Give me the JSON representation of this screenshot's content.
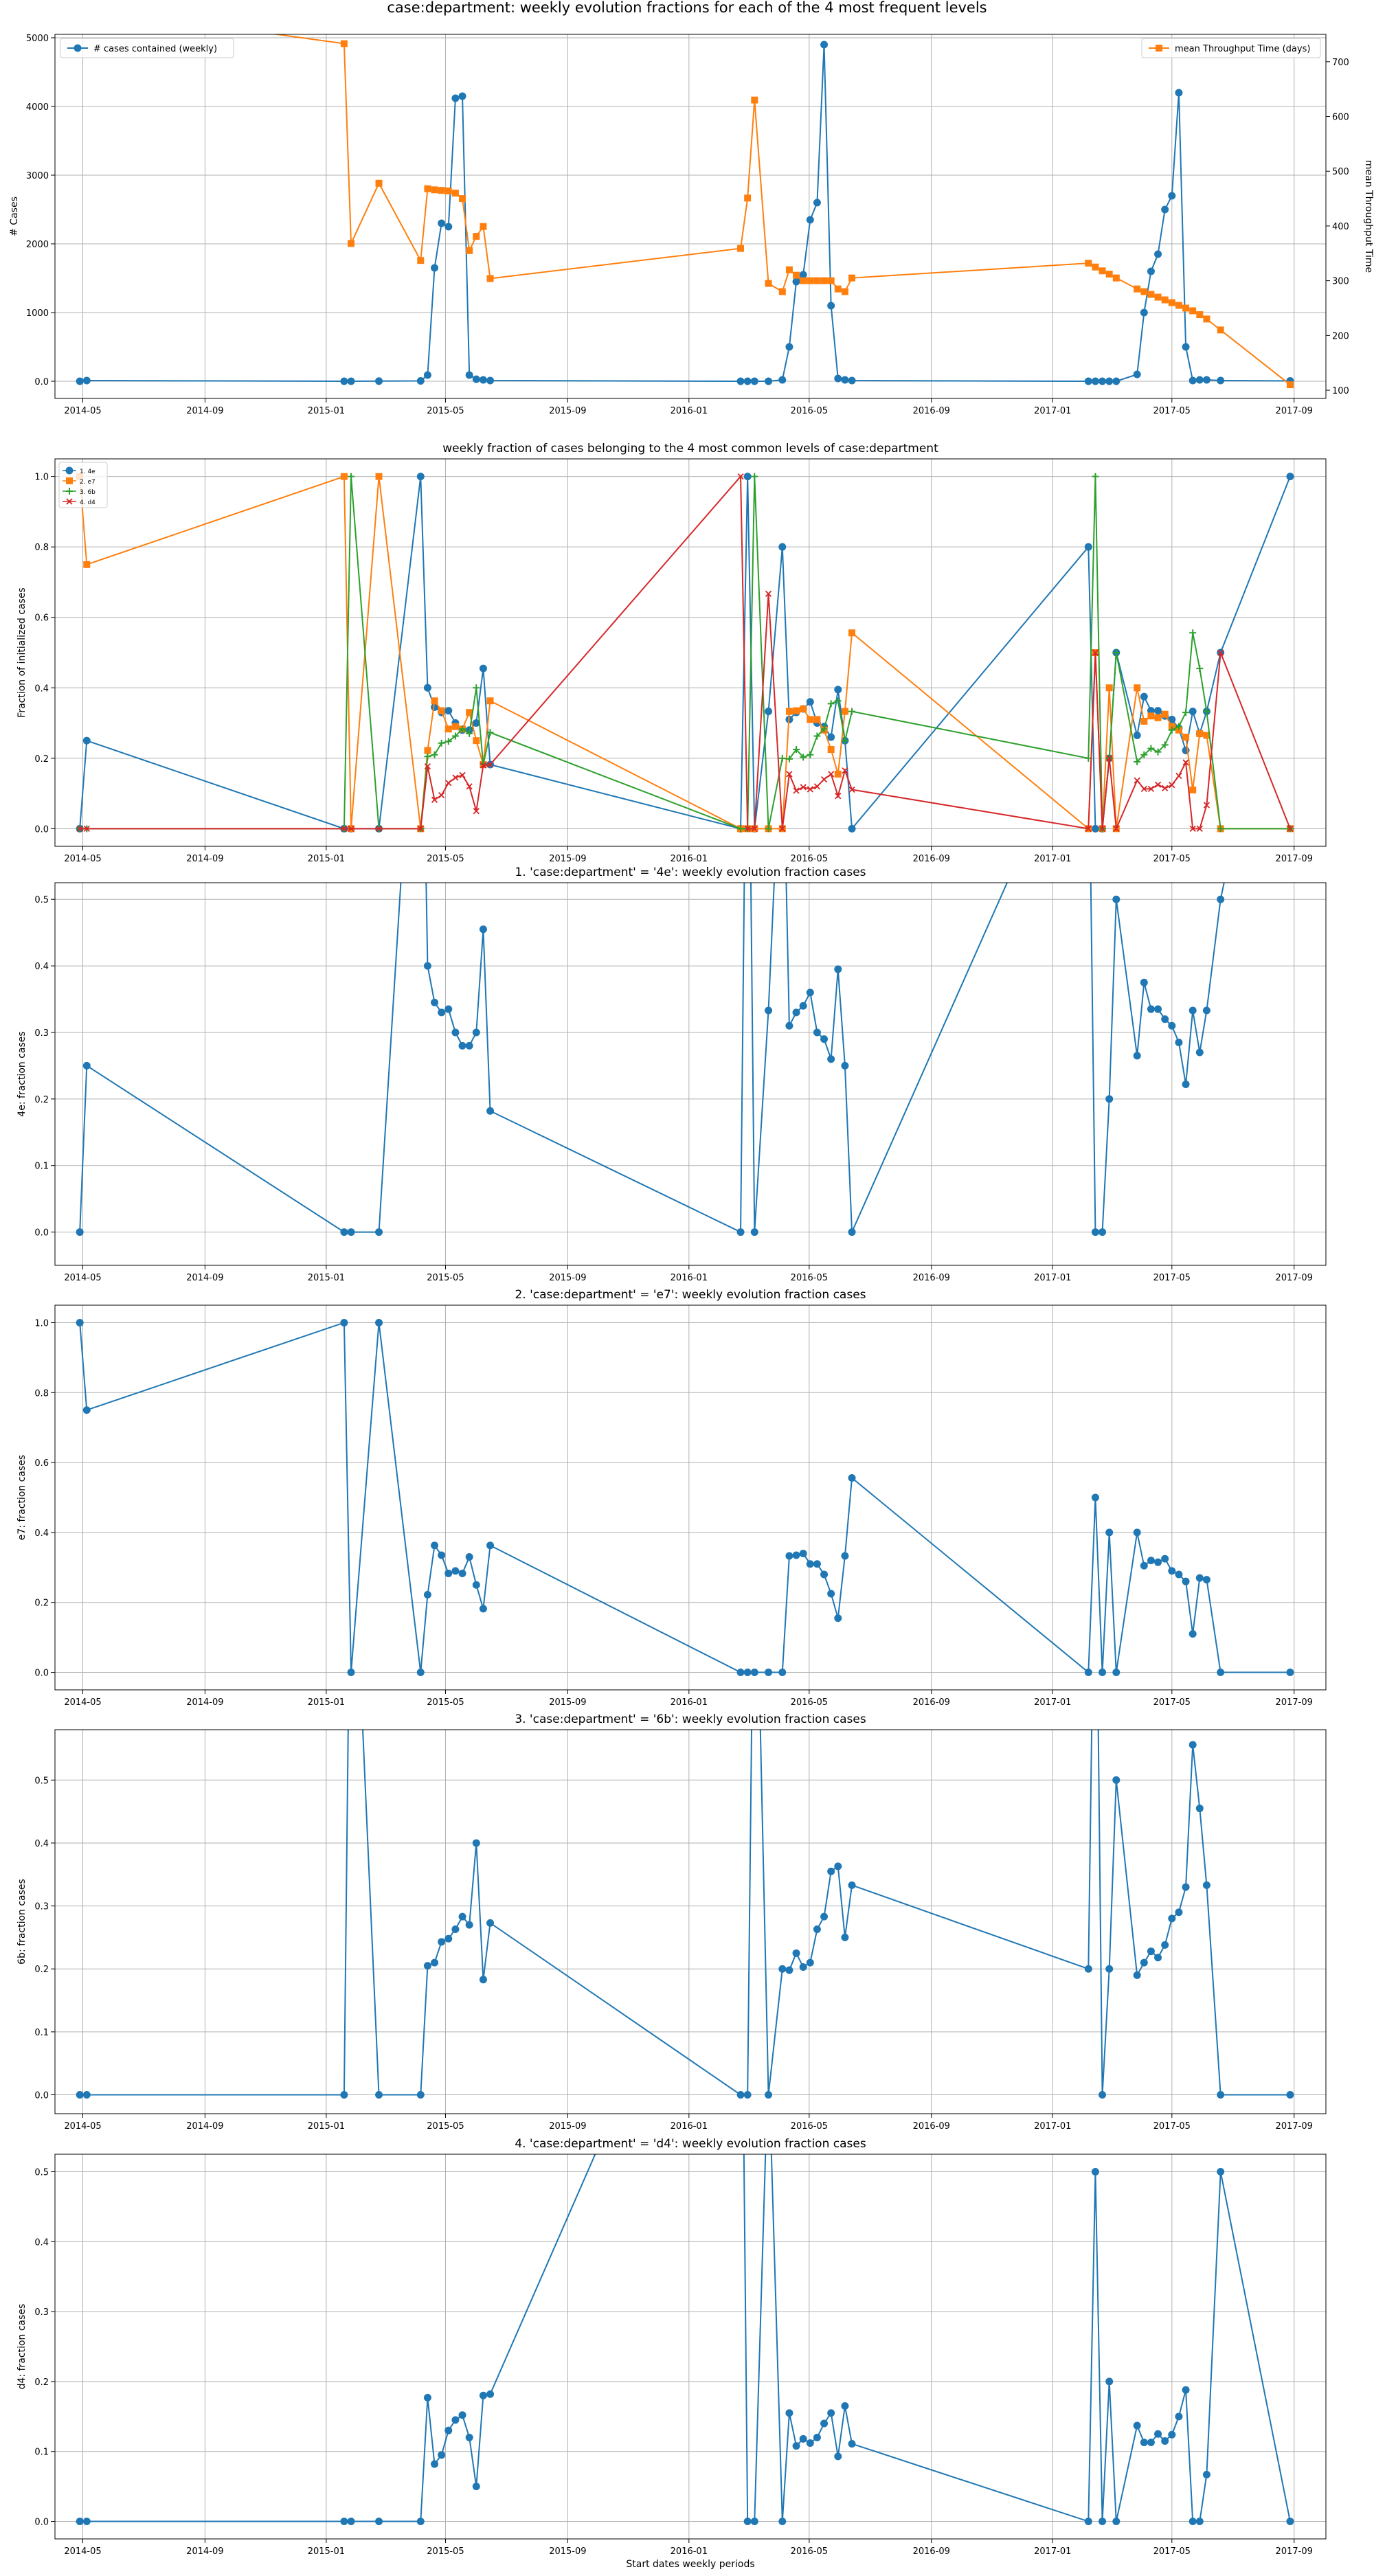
{
  "figure": {
    "suptitle": "case:department: weekly evolution fractions for each of the 4 most frequent levels",
    "xlabel": "Start dates weekly periods"
  },
  "x_ticks": [
    "2014-05",
    "2014-09",
    "2015-01",
    "2015-05",
    "2015-09",
    "2016-01",
    "2016-05",
    "2016-09",
    "2017-01",
    "2017-05",
    "2017-09"
  ],
  "colors": {
    "blue": "#1f77b4",
    "orange": "#ff7f0e",
    "green": "#2ca02c",
    "red": "#d62728",
    "grid": "#b0b0b0"
  },
  "chart_data": [
    {
      "type": "line",
      "title": "",
      "xlabel": "",
      "ylabel": "# Cases",
      "ylabel_right": "mean Throughput Time",
      "xlim": [
        "2014-04-03",
        "2017-10-03"
      ],
      "ylim": [
        -250,
        5050
      ],
      "ylim_right": [
        85,
        750
      ],
      "y_ticks": [
        0,
        1000,
        2000,
        3000,
        4000,
        5000
      ],
      "y_ticks_right": [
        100,
        200,
        300,
        400,
        500,
        600,
        700
      ],
      "grid": true,
      "legend": {
        "left": "# cases contained (weekly)",
        "right": "mean Throughput Time (days)"
      },
      "series": [
        {
          "name": "# cases contained (weekly)",
          "color": "#1f77b4",
          "marker": "circle",
          "axis": "left",
          "x": [
            "2014-04-28",
            "2014-05-05",
            "2015-01-19",
            "2015-01-26",
            "2015-02-23",
            "2015-04-06",
            "2015-04-13",
            "2015-04-20",
            "2015-04-27",
            "2015-05-04",
            "2015-05-11",
            "2015-05-18",
            "2015-05-25",
            "2015-06-01",
            "2015-06-08",
            "2015-06-15",
            "2016-02-22",
            "2016-02-29",
            "2016-03-07",
            "2016-03-21",
            "2016-04-04",
            "2016-04-11",
            "2016-04-18",
            "2016-04-25",
            "2016-05-02",
            "2016-05-09",
            "2016-05-16",
            "2016-05-23",
            "2016-05-30",
            "2016-06-06",
            "2016-06-13",
            "2017-02-06",
            "2017-02-13",
            "2017-02-20",
            "2017-02-27",
            "2017-03-06",
            "2017-03-27",
            "2017-04-03",
            "2017-04-10",
            "2017-04-17",
            "2017-04-24",
            "2017-05-01",
            "2017-05-08",
            "2017-05-15",
            "2017-05-22",
            "2017-05-29",
            "2017-06-05",
            "2017-06-19",
            "2017-08-28"
          ],
          "values": [
            0,
            10,
            0,
            0,
            2,
            5,
            90,
            1650,
            2300,
            2250,
            4120,
            4150,
            90,
            30,
            20,
            10,
            0,
            0,
            0,
            0,
            20,
            500,
            1450,
            1550,
            2350,
            2600,
            4900,
            1100,
            40,
            20,
            10,
            0,
            0,
            0,
            0,
            0,
            100,
            1000,
            1600,
            1850,
            2500,
            2700,
            4200,
            500,
            10,
            20,
            20,
            10,
            5
          ]
        },
        {
          "name": "mean Throughput Time (days)",
          "color": "#ff7f0e",
          "marker": "square",
          "axis": "right",
          "x": [
            "2014-04-28",
            "2015-01-19",
            "2015-01-26",
            "2015-02-23",
            "2015-04-06",
            "2015-04-13",
            "2015-04-20",
            "2015-04-27",
            "2015-05-04",
            "2015-05-11",
            "2015-05-18",
            "2015-05-25",
            "2015-06-01",
            "2015-06-08",
            "2015-06-15",
            "2016-02-22",
            "2016-02-29",
            "2016-03-07",
            "2016-03-21",
            "2016-04-04",
            "2016-04-11",
            "2016-04-18",
            "2016-04-25",
            "2016-05-02",
            "2016-05-09",
            "2016-05-16",
            "2016-05-23",
            "2016-05-30",
            "2016-06-06",
            "2016-06-13",
            "2017-02-06",
            "2017-02-13",
            "2017-02-20",
            "2017-02-27",
            "2017-03-06",
            "2017-03-27",
            "2017-04-03",
            "2017-04-10",
            "2017-04-17",
            "2017-04-24",
            "2017-05-01",
            "2017-05-08",
            "2017-05-15",
            "2017-05-22",
            "2017-05-29",
            "2017-06-05",
            "2017-06-19",
            "2017-08-28"
          ],
          "values": [
            800,
            733,
            368,
            478,
            337,
            468,
            466,
            465,
            464,
            460,
            450,
            355,
            381,
            399,
            304,
            359,
            451,
            630,
            295,
            280,
            320,
            310,
            300,
            300,
            300,
            300,
            300,
            285,
            280,
            305,
            332,
            325,
            318,
            312,
            305,
            285,
            280,
            275,
            270,
            265,
            260,
            255,
            250,
            245,
            238,
            230,
            210,
            110
          ]
        }
      ]
    },
    {
      "type": "line",
      "title": "weekly fraction of cases belonging to the 4 most common levels of case:department",
      "xlabel": "",
      "ylabel": "Fraction of initialized cases",
      "xlim": [
        "2014-04-03",
        "2017-10-03"
      ],
      "ylim": [
        -0.05,
        1.05
      ],
      "y_ticks": [
        0.0,
        0.2,
        0.4,
        0.6,
        0.8,
        1.0
      ],
      "grid": true,
      "legend_position": "top-left",
      "series": [
        {
          "name": "1. 4e",
          "color": "#1f77b4",
          "marker": "circle",
          "ref": "4e"
        },
        {
          "name": "2. e7",
          "color": "#ff7f0e",
          "marker": "square",
          "ref": "e7"
        },
        {
          "name": "3. 6b",
          "color": "#2ca02c",
          "marker": "plus",
          "ref": "6b"
        },
        {
          "name": "4. d4",
          "color": "#d62728",
          "marker": "x",
          "ref": "d4"
        }
      ]
    },
    {
      "type": "line",
      "key": "4e",
      "title": "1. 'case:department' = '4e': weekly evolution fraction cases",
      "xlabel": "",
      "ylabel": "4e: fraction cases",
      "xlim": [
        "2014-04-03",
        "2017-10-03"
      ],
      "ylim": [
        -0.05,
        0.525
      ],
      "y_ticks": [
        0.0,
        0.1,
        0.2,
        0.3,
        0.4,
        0.5
      ],
      "grid": true,
      "series": [
        {
          "color": "#1f77b4",
          "marker": "circle",
          "x": [
            "2014-04-28",
            "2014-05-05",
            "2015-01-19",
            "2015-01-26",
            "2015-02-23",
            "2015-04-06",
            "2015-04-13",
            "2015-04-20",
            "2015-04-27",
            "2015-05-04",
            "2015-05-11",
            "2015-05-18",
            "2015-05-25",
            "2015-06-01",
            "2015-06-08",
            "2015-06-15",
            "2016-02-22",
            "2016-02-29",
            "2016-03-07",
            "2016-03-21",
            "2016-04-04",
            "2016-04-11",
            "2016-04-18",
            "2016-04-25",
            "2016-05-02",
            "2016-05-09",
            "2016-05-16",
            "2016-05-23",
            "2016-05-30",
            "2016-06-06",
            "2016-06-13",
            "2017-02-06",
            "2017-02-13",
            "2017-02-20",
            "2017-02-27",
            "2017-03-06",
            "2017-03-27",
            "2017-04-03",
            "2017-04-10",
            "2017-04-17",
            "2017-04-24",
            "2017-05-01",
            "2017-05-08",
            "2017-05-15",
            "2017-05-22",
            "2017-05-29",
            "2017-06-05",
            "2017-06-19",
            "2017-08-28"
          ],
          "values": [
            0,
            0.25,
            0,
            0,
            0,
            1,
            0.4,
            0.345,
            0.33,
            0.335,
            0.3,
            0.28,
            0.28,
            0.3,
            0.455,
            0.182,
            0,
            1,
            0,
            0.333,
            0.8,
            0.31,
            0.33,
            0.34,
            0.36,
            0.3,
            0.29,
            0.26,
            0.395,
            0.25,
            0,
            0.8,
            0,
            0,
            0.2,
            0.5,
            0.265,
            0.375,
            0.335,
            0.335,
            0.32,
            0.31,
            0.285,
            0.222,
            0.333,
            0.27,
            0.333,
            0.5,
            1
          ]
        }
      ]
    },
    {
      "type": "line",
      "key": "e7",
      "title": "2. 'case:department' = 'e7': weekly evolution fraction cases",
      "xlabel": "",
      "ylabel": "e7: fraction cases",
      "xlim": [
        "2014-04-03",
        "2017-10-03"
      ],
      "ylim": [
        -0.05,
        1.05
      ],
      "y_ticks": [
        0.0,
        0.2,
        0.4,
        0.6,
        0.8,
        1.0
      ],
      "grid": true,
      "series": [
        {
          "color": "#1f77b4",
          "marker": "circle",
          "x": [
            "2014-04-28",
            "2014-05-05",
            "2015-01-19",
            "2015-01-26",
            "2015-02-23",
            "2015-04-06",
            "2015-04-13",
            "2015-04-20",
            "2015-04-27",
            "2015-05-04",
            "2015-05-11",
            "2015-05-18",
            "2015-05-25",
            "2015-06-01",
            "2015-06-08",
            "2015-06-15",
            "2016-02-22",
            "2016-02-29",
            "2016-03-07",
            "2016-03-21",
            "2016-04-04",
            "2016-04-11",
            "2016-04-18",
            "2016-04-25",
            "2016-05-02",
            "2016-05-09",
            "2016-05-16",
            "2016-05-23",
            "2016-05-30",
            "2016-06-06",
            "2016-06-13",
            "2017-02-06",
            "2017-02-13",
            "2017-02-20",
            "2017-02-27",
            "2017-03-06",
            "2017-03-27",
            "2017-04-03",
            "2017-04-10",
            "2017-04-17",
            "2017-04-24",
            "2017-05-01",
            "2017-05-08",
            "2017-05-15",
            "2017-05-22",
            "2017-05-29",
            "2017-06-05",
            "2017-06-19",
            "2017-08-28"
          ],
          "values": [
            1,
            0.75,
            1,
            0,
            1,
            0,
            0.222,
            0.363,
            0.335,
            0.283,
            0.29,
            0.283,
            0.33,
            0.25,
            0.182,
            0.363,
            0,
            0,
            0,
            0,
            0,
            0.333,
            0.335,
            0.34,
            0.31,
            0.31,
            0.28,
            0.225,
            0.155,
            0.333,
            0.556,
            0,
            0.5,
            0,
            0.4,
            0,
            0.4,
            0.305,
            0.32,
            0.315,
            0.325,
            0.29,
            0.28,
            0.26,
            0.11,
            0.27,
            0.265,
            0,
            0
          ]
        }
      ]
    },
    {
      "type": "line",
      "key": "6b",
      "title": "3. 'case:department' = '6b': weekly evolution fraction cases",
      "xlabel": "",
      "ylabel": "6b: fraction cases",
      "xlim": [
        "2014-04-03",
        "2017-10-03"
      ],
      "ylim": [
        -0.03,
        0.58
      ],
      "y_ticks": [
        0.0,
        0.1,
        0.2,
        0.3,
        0.4,
        0.5
      ],
      "grid": true,
      "series": [
        {
          "color": "#1f77b4",
          "marker": "circle",
          "x": [
            "2014-04-28",
            "2014-05-05",
            "2015-01-19",
            "2015-01-26",
            "2015-02-23",
            "2015-04-06",
            "2015-04-13",
            "2015-04-20",
            "2015-04-27",
            "2015-05-04",
            "2015-05-11",
            "2015-05-18",
            "2015-05-25",
            "2015-06-01",
            "2015-06-08",
            "2015-06-15",
            "2016-02-22",
            "2016-02-29",
            "2016-03-07",
            "2016-03-21",
            "2016-04-04",
            "2016-04-11",
            "2016-04-18",
            "2016-04-25",
            "2016-05-02",
            "2016-05-09",
            "2016-05-16",
            "2016-05-23",
            "2016-05-30",
            "2016-06-06",
            "2016-06-13",
            "2017-02-06",
            "2017-02-13",
            "2017-02-20",
            "2017-02-27",
            "2017-03-06",
            "2017-03-27",
            "2017-04-03",
            "2017-04-10",
            "2017-04-17",
            "2017-04-24",
            "2017-05-01",
            "2017-05-08",
            "2017-05-15",
            "2017-05-22",
            "2017-05-29",
            "2017-06-05",
            "2017-06-19",
            "2017-08-28"
          ],
          "values": [
            0,
            0,
            0,
            1,
            0,
            0,
            0.205,
            0.21,
            0.243,
            0.248,
            0.263,
            0.283,
            0.27,
            0.4,
            0.183,
            0.273,
            0,
            0,
            1,
            0,
            0.2,
            0.198,
            0.225,
            0.203,
            0.21,
            0.263,
            0.283,
            0.355,
            0.363,
            0.25,
            0.333,
            0.2,
            1,
            0,
            0.2,
            0.5,
            0.19,
            0.21,
            0.228,
            0.218,
            0.238,
            0.28,
            0.29,
            0.33,
            0.556,
            0.455,
            0.333,
            0,
            0
          ]
        }
      ]
    },
    {
      "type": "line",
      "key": "d4",
      "title": "4. 'case:department' = 'd4': weekly evolution fraction cases",
      "xlabel": "Start dates weekly periods",
      "ylabel": "d4: fraction cases",
      "xlim": [
        "2014-04-03",
        "2017-10-03"
      ],
      "ylim": [
        -0.025,
        0.525
      ],
      "y_ticks": [
        0.0,
        0.1,
        0.2,
        0.3,
        0.4,
        0.5
      ],
      "grid": true,
      "series": [
        {
          "color": "#1f77b4",
          "marker": "circle",
          "x": [
            "2014-04-28",
            "2014-05-05",
            "2015-01-19",
            "2015-01-26",
            "2015-02-23",
            "2015-04-06",
            "2015-04-13",
            "2015-04-20",
            "2015-04-27",
            "2015-05-04",
            "2015-05-11",
            "2015-05-18",
            "2015-05-25",
            "2015-06-01",
            "2015-06-08",
            "2015-06-15",
            "2016-02-22",
            "2016-02-29",
            "2016-03-07",
            "2016-03-21",
            "2016-04-04",
            "2016-04-11",
            "2016-04-18",
            "2016-04-25",
            "2016-05-02",
            "2016-05-09",
            "2016-05-16",
            "2016-05-23",
            "2016-05-30",
            "2016-06-06",
            "2016-06-13",
            "2017-02-06",
            "2017-02-13",
            "2017-02-20",
            "2017-02-27",
            "2017-03-06",
            "2017-03-27",
            "2017-04-03",
            "2017-04-10",
            "2017-04-17",
            "2017-04-24",
            "2017-05-01",
            "2017-05-08",
            "2017-05-15",
            "2017-05-22",
            "2017-05-29",
            "2017-06-05",
            "2017-06-19",
            "2017-08-28"
          ],
          "values": [
            0,
            0,
            0,
            0,
            0,
            0,
            0.177,
            0.082,
            0.095,
            0.13,
            0.145,
            0.152,
            0.12,
            0.05,
            0.18,
            0.182,
            1,
            0,
            0,
            0.667,
            0,
            0.155,
            0.108,
            0.118,
            0.112,
            0.12,
            0.14,
            0.155,
            0.093,
            0.165,
            0.111,
            0,
            0.5,
            0,
            0.2,
            0,
            0.137,
            0.113,
            0.113,
            0.125,
            0.115,
            0.124,
            0.15,
            0.188,
            0,
            0,
            0.067,
            0.5,
            0
          ]
        }
      ]
    }
  ]
}
